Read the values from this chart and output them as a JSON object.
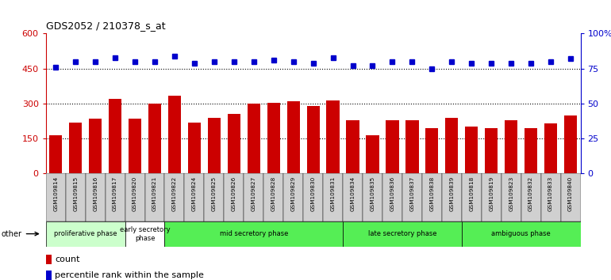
{
  "title": "GDS2052 / 210378_s_at",
  "samples": [
    "GSM109814",
    "GSM109815",
    "GSM109816",
    "GSM109817",
    "GSM109820",
    "GSM109821",
    "GSM109822",
    "GSM109824",
    "GSM109825",
    "GSM109826",
    "GSM109827",
    "GSM109828",
    "GSM109829",
    "GSM109830",
    "GSM109831",
    "GSM109834",
    "GSM109835",
    "GSM109836",
    "GSM109837",
    "GSM109838",
    "GSM109839",
    "GSM109818",
    "GSM109819",
    "GSM109823",
    "GSM109832",
    "GSM109833",
    "GSM109840"
  ],
  "counts": [
    165,
    220,
    235,
    320,
    235,
    300,
    335,
    220,
    240,
    255,
    300,
    305,
    310,
    290,
    315,
    230,
    165,
    230,
    230,
    195,
    240,
    200,
    195,
    230,
    195,
    215,
    250
  ],
  "percentiles": [
    76,
    80,
    80,
    83,
    80,
    80,
    84,
    79,
    80,
    80,
    80,
    81,
    80,
    79,
    83,
    77,
    77,
    80,
    80,
    75,
    80,
    79,
    79,
    79,
    79,
    80,
    82
  ],
  "bar_color": "#cc0000",
  "dot_color": "#0000cc",
  "ylim_left": [
    0,
    600
  ],
  "ylim_right": [
    0,
    100
  ],
  "yticks_left": [
    0,
    150,
    300,
    450,
    600
  ],
  "yticks_right": [
    0,
    25,
    50,
    75,
    100
  ],
  "ytick_labels_left": [
    "0",
    "150",
    "300",
    "450",
    "600"
  ],
  "ytick_labels_right": [
    "0",
    "25",
    "50",
    "75",
    "100%"
  ],
  "hlines": [
    150,
    300,
    450
  ],
  "phases": [
    {
      "label": "proliferative phase",
      "start": 0,
      "end": 4,
      "color": "#ccffcc"
    },
    {
      "label": "early secretory\nphase",
      "start": 4,
      "end": 6,
      "color": "#ffffff"
    },
    {
      "label": "mid secretory phase",
      "start": 6,
      "end": 15,
      "color": "#55ee55"
    },
    {
      "label": "late secretory phase",
      "start": 15,
      "end": 21,
      "color": "#55ee55"
    },
    {
      "label": "ambiguous phase",
      "start": 21,
      "end": 27,
      "color": "#55ee55"
    }
  ],
  "other_label": "other",
  "legend_count_label": "count",
  "legend_pct_label": "percentile rank within the sample",
  "plot_bg_color": "#ffffff",
  "xtick_bg": "#d0d0d0"
}
